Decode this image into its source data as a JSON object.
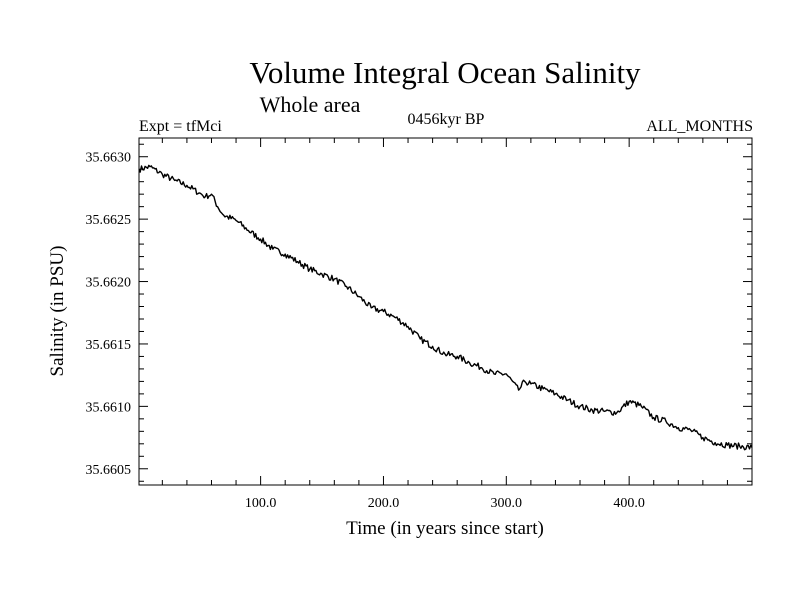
{
  "chart_data": {
    "type": "line",
    "title": "Volume Integral Ocean Salinity",
    "subtitle": "Whole area",
    "annotations": {
      "experiment": "Expt = tfMci",
      "period": "0456kyr BP",
      "months": "ALL_MONTHS"
    },
    "xlabel": "Time (in years since start)",
    "ylabel": "Salinity (in PSU)",
    "xlim": [
      1,
      500
    ],
    "ylim": [
      35.66037,
      35.66315
    ],
    "x_ticks": [
      {
        "value": 100,
        "label": "100.0"
      },
      {
        "value": 200,
        "label": "200.0"
      },
      {
        "value": 300,
        "label": "300.0"
      },
      {
        "value": 400,
        "label": "400.0"
      }
    ],
    "y_ticks": [
      {
        "value": 35.6605,
        "label": "35.6605"
      },
      {
        "value": 35.661,
        "label": "35.6610"
      },
      {
        "value": 35.6615,
        "label": "35.6615"
      },
      {
        "value": 35.662,
        "label": "35.6620"
      },
      {
        "value": 35.6625,
        "label": "35.6625"
      },
      {
        "value": 35.663,
        "label": "35.6630"
      }
    ],
    "grid": false,
    "legend": "none",
    "series": [
      {
        "x": [
          1,
          10,
          20,
          30,
          40,
          50,
          55,
          60,
          65,
          70,
          80,
          90,
          100,
          110,
          120,
          130,
          140,
          150,
          160,
          170,
          180,
          190,
          200,
          210,
          220,
          230,
          240,
          250,
          260,
          270,
          280,
          290,
          300,
          310,
          315,
          320,
          330,
          340,
          350,
          360,
          370,
          380,
          390,
          400,
          410,
          420,
          430,
          440,
          450,
          460,
          470,
          480,
          490,
          500
        ],
        "y": [
          35.6629,
          35.66292,
          35.66286,
          35.66281,
          35.66277,
          35.66271,
          35.66268,
          35.6627,
          35.6626,
          35.66253,
          35.66249,
          35.66241,
          35.66234,
          35.66226,
          35.66222,
          35.66216,
          35.6621,
          35.66206,
          35.66202,
          35.66196,
          35.66188,
          35.66179,
          35.66176,
          35.66171,
          35.66164,
          35.66154,
          35.66148,
          35.66142,
          35.6614,
          35.66135,
          35.66131,
          35.66126,
          35.66126,
          35.66113,
          35.6612,
          35.66118,
          35.66114,
          35.6611,
          35.66105,
          35.661,
          35.66097,
          35.66096,
          35.66095,
          35.66104,
          35.661,
          35.66091,
          35.66088,
          35.66083,
          35.66081,
          35.66075,
          35.66071,
          35.66069,
          35.66068,
          35.66067
        ],
        "color": "#000000"
      }
    ]
  }
}
